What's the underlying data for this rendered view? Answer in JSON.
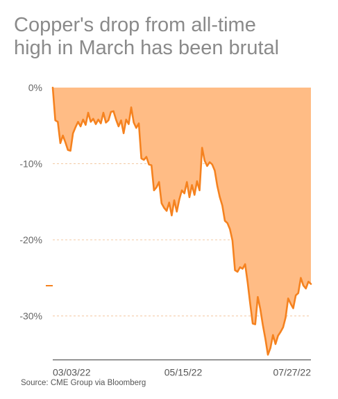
{
  "title_lines": [
    "Copper's drop from all-time",
    "high in March has been brutal"
  ],
  "source": "Source: CME Group via Bloomberg",
  "colors": {
    "area": "#ffbc85",
    "line": "#f5821f",
    "title": "#8a8a8a",
    "grid": "#f3c9a4"
  },
  "chart_data": {
    "type": "area",
    "title": "Copper's drop from all-time high in March has been brutal",
    "xlabel": "",
    "ylabel": "",
    "ylim": [
      -35.5,
      0
    ],
    "y_ticks": [
      0,
      -10,
      -20,
      -30
    ],
    "y_tick_labels": [
      "0%",
      "-10%",
      "-20%",
      "-30%"
    ],
    "x_tick_labels": [
      "03/03/22",
      "05/15/22",
      "07/27/22"
    ],
    "grid": true,
    "x": [
      "03/03/22",
      "03/04/22",
      "03/07/22",
      "03/08/22",
      "03/09/22",
      "03/10/22",
      "03/11/22",
      "03/14/22",
      "03/15/22",
      "03/16/22",
      "03/17/22",
      "03/18/22",
      "03/21/22",
      "03/22/22",
      "03/23/22",
      "03/24/22",
      "03/25/22",
      "03/28/22",
      "03/29/22",
      "03/30/22",
      "03/31/22",
      "04/01/22",
      "04/04/22",
      "04/05/22",
      "04/06/22",
      "04/07/22",
      "04/08/22",
      "04/11/22",
      "04/12/22",
      "04/13/22",
      "04/14/22",
      "04/15/22",
      "04/18/22",
      "04/19/22",
      "04/20/22",
      "04/21/22",
      "04/22/22",
      "04/25/22",
      "04/26/22",
      "04/27/22",
      "04/28/22",
      "04/29/22",
      "05/02/22",
      "05/03/22",
      "05/04/22",
      "05/05/22",
      "05/06/22",
      "05/09/22",
      "05/10/22",
      "05/11/22",
      "05/12/22",
      "05/13/22",
      "05/16/22",
      "05/17/22",
      "05/18/22",
      "05/19/22",
      "05/20/22",
      "05/23/22",
      "05/24/22",
      "05/25/22",
      "05/26/22",
      "05/27/22",
      "05/31/22",
      "06/01/22",
      "06/02/22",
      "06/03/22",
      "06/06/22",
      "06/07/22",
      "06/08/22",
      "06/09/22",
      "06/10/22",
      "06/13/22",
      "06/14/22",
      "06/15/22",
      "06/16/22",
      "06/17/22",
      "06/21/22",
      "06/22/22",
      "06/23/22",
      "06/24/22",
      "06/27/22",
      "06/28/22",
      "06/29/22",
      "06/30/22",
      "07/01/22",
      "07/05/22",
      "07/06/22",
      "07/07/22",
      "07/08/22",
      "07/11/22",
      "07/12/22",
      "07/13/22",
      "07/14/22",
      "07/15/22",
      "07/18/22",
      "07/19/22",
      "07/20/22",
      "07/21/22",
      "07/22/22",
      "07/25/22",
      "07/26/22",
      "07/27/22",
      "07/28/22"
    ],
    "series": [
      {
        "values": [
          0,
          -4.3,
          -4.5,
          -7.3,
          -6.3,
          -7.2,
          -8.2,
          -8.3,
          -6.0,
          -5.2,
          -4.5,
          -5.1,
          -4.2,
          -4.9,
          -3.3,
          -4.5,
          -4.1,
          -4.8,
          -4.2,
          -4.7,
          -3.3,
          -4.6,
          -4.3,
          -3.2,
          -3.1,
          -4.2,
          -5.1,
          -4.3,
          -6.0,
          -4.2,
          -4.8,
          -2.6,
          -4.6,
          -5.3,
          -4.7,
          -9.3,
          -9.5,
          -9.1,
          -10.1,
          -10.2,
          -13.5,
          -13.1,
          -12.4,
          -15.2,
          -15.8,
          -16.2,
          -15.1,
          -16.8,
          -14.8,
          -16.3,
          -14.7,
          -13.5,
          -13.9,
          -12.4,
          -14.4,
          -12.8,
          -14.1,
          -12.3,
          -13.5,
          -7.9,
          -9.6,
          -10.3,
          -9.8,
          -10.1,
          -10.9,
          -12.9,
          -14.4,
          -15.5,
          -17.5,
          -17.8,
          -18.6,
          -20.1,
          -24.0,
          -24.2,
          -23.6,
          -23.8,
          -23.2,
          -25.6,
          -28.4,
          -31.0,
          -31.1,
          -27.5,
          -29.1,
          -31.2,
          -33.0,
          -35.1,
          -34.2,
          -32.5,
          -33.7,
          -32.6,
          -32.1,
          -31.5,
          -30.2,
          -27.7,
          -28.4,
          -29.0,
          -27.3,
          -27.0,
          -25.0,
          -26.0,
          -26.4,
          -25.5,
          -25.8
        ]
      }
    ]
  }
}
